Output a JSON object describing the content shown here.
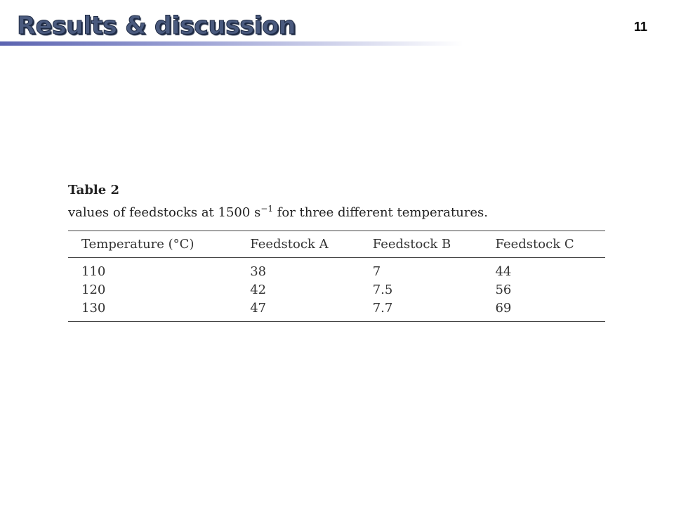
{
  "header": {
    "title": "Results & discussion",
    "page_number": "11"
  },
  "table": {
    "label": "Table 2",
    "caption": {
      "before": "values of feedstocks at 1500 s",
      "superscript": "−1",
      "after": " for three different temperatures."
    },
    "columns": [
      "Temperature (°C)",
      "Feedstock A",
      "Feedstock B",
      "Feedstock C"
    ],
    "rows": [
      [
        110,
        38,
        7,
        44
      ],
      [
        120,
        42,
        7.5,
        56
      ],
      [
        130,
        47,
        7.7,
        69
      ]
    ]
  }
}
